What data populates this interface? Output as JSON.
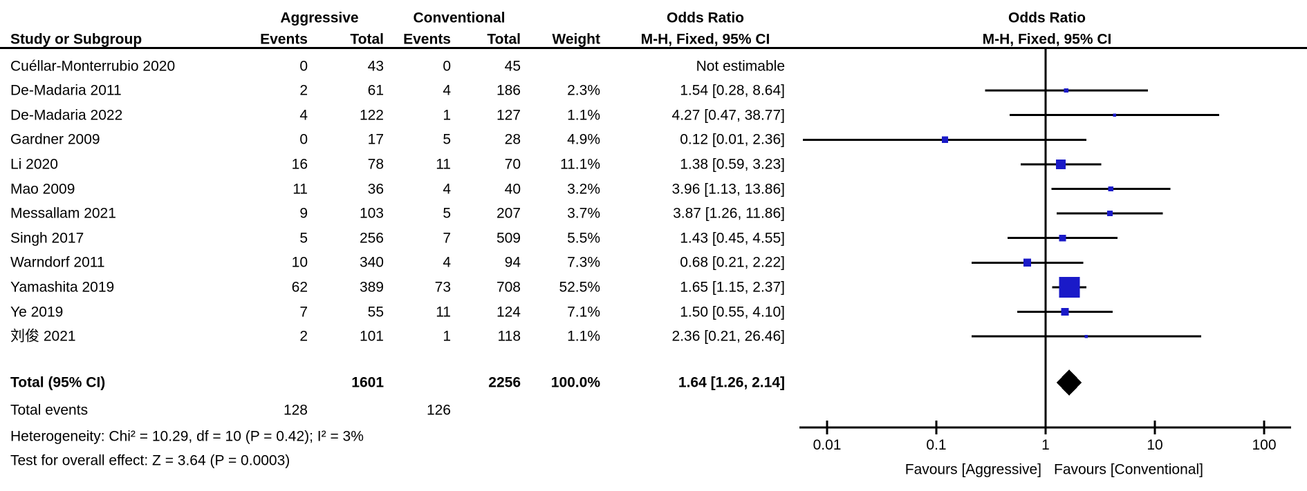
{
  "headers": {
    "study": "Study or Subgroup",
    "group_aggressive": "Aggressive",
    "group_conventional": "Conventional",
    "events": "Events",
    "total": "Total",
    "weight": "Weight",
    "or_text_line1": "Odds Ratio",
    "or_text_line2": "M-H, Fixed, 95% CI",
    "or_plot_line1": "Odds Ratio",
    "or_plot_line2": "M-H, Fixed, 95% CI"
  },
  "chart_data": {
    "type": "forest",
    "x_scale": "log",
    "x_min": 0.01,
    "x_max": 100,
    "x_ticks": [
      0.01,
      0.1,
      1,
      10,
      100
    ],
    "favours_left": "Favours [Aggressive]",
    "favours_right": "Favours [Conventional]",
    "marker_color": "#1a1ac8",
    "diamond_color": "#000000",
    "studies": [
      {
        "name": "Cuéllar-Monterrubio 2020",
        "events_aggressive": 0,
        "total_aggressive": 43,
        "events_conventional": 0,
        "total_conventional": 45,
        "weight_text": "",
        "weight_value": null,
        "or_ci_text": "Not estimable",
        "or": null,
        "ci_low": null,
        "ci_high": null
      },
      {
        "name": "De-Madaria 2011",
        "events_aggressive": 2,
        "total_aggressive": 61,
        "events_conventional": 4,
        "total_conventional": 186,
        "weight_text": "2.3%",
        "weight_value": 2.3,
        "or_ci_text": "1.54 [0.28, 8.64]",
        "or": 1.54,
        "ci_low": 0.28,
        "ci_high": 8.64
      },
      {
        "name": "De-Madaria 2022",
        "events_aggressive": 4,
        "total_aggressive": 122,
        "events_conventional": 1,
        "total_conventional": 127,
        "weight_text": "1.1%",
        "weight_value": 1.1,
        "or_ci_text": "4.27 [0.47, 38.77]",
        "or": 4.27,
        "ci_low": 0.47,
        "ci_high": 38.77
      },
      {
        "name": "Gardner 2009",
        "events_aggressive": 0,
        "total_aggressive": 17,
        "events_conventional": 5,
        "total_conventional": 28,
        "weight_text": "4.9%",
        "weight_value": 4.9,
        "or_ci_text": "0.12 [0.01, 2.36]",
        "or": 0.12,
        "ci_low": 0.01,
        "ci_high": 2.36,
        "plot_low": 0.006
      },
      {
        "name": "Li 2020",
        "events_aggressive": 16,
        "total_aggressive": 78,
        "events_conventional": 11,
        "total_conventional": 70,
        "weight_text": "11.1%",
        "weight_value": 11.1,
        "or_ci_text": "1.38 [0.59, 3.23]",
        "or": 1.38,
        "ci_low": 0.59,
        "ci_high": 3.23
      },
      {
        "name": "Mao 2009",
        "events_aggressive": 11,
        "total_aggressive": 36,
        "events_conventional": 4,
        "total_conventional": 40,
        "weight_text": "3.2%",
        "weight_value": 3.2,
        "or_ci_text": "3.96 [1.13, 13.86]",
        "or": 3.96,
        "ci_low": 1.13,
        "ci_high": 13.86
      },
      {
        "name": "Messallam 2021",
        "events_aggressive": 9,
        "total_aggressive": 103,
        "events_conventional": 5,
        "total_conventional": 207,
        "weight_text": "3.7%",
        "weight_value": 3.7,
        "or_ci_text": "3.87 [1.26, 11.86]",
        "or": 3.87,
        "ci_low": 1.26,
        "ci_high": 11.86
      },
      {
        "name": "Singh 2017",
        "events_aggressive": 5,
        "total_aggressive": 256,
        "events_conventional": 7,
        "total_conventional": 509,
        "weight_text": "5.5%",
        "weight_value": 5.5,
        "or_ci_text": "1.43 [0.45, 4.55]",
        "or": 1.43,
        "ci_low": 0.45,
        "ci_high": 4.55
      },
      {
        "name": "Warndorf 2011",
        "events_aggressive": 10,
        "total_aggressive": 340,
        "events_conventional": 4,
        "total_conventional": 94,
        "weight_text": "7.3%",
        "weight_value": 7.3,
        "or_ci_text": "0.68 [0.21, 2.22]",
        "or": 0.68,
        "ci_low": 0.21,
        "ci_high": 2.22
      },
      {
        "name": "Yamashita 2019",
        "events_aggressive": 62,
        "total_aggressive": 389,
        "events_conventional": 73,
        "total_conventional": 708,
        "weight_text": "52.5%",
        "weight_value": 52.5,
        "or_ci_text": "1.65 [1.15, 2.37]",
        "or": 1.65,
        "ci_low": 1.15,
        "ci_high": 2.37
      },
      {
        "name": "Ye 2019",
        "events_aggressive": 7,
        "total_aggressive": 55,
        "events_conventional": 11,
        "total_conventional": 124,
        "weight_text": "7.1%",
        "weight_value": 7.1,
        "or_ci_text": "1.50 [0.55, 4.10]",
        "or": 1.5,
        "ci_low": 0.55,
        "ci_high": 4.1
      },
      {
        "name": "刘俊 2021",
        "events_aggressive": 2,
        "total_aggressive": 101,
        "events_conventional": 1,
        "total_conventional": 118,
        "weight_text": "1.1%",
        "weight_value": 1.1,
        "or_ci_text": "2.36 [0.21, 26.46]",
        "or": 2.36,
        "ci_low": 0.21,
        "ci_high": 26.46
      }
    ],
    "total": {
      "label": "Total (95% CI)",
      "total_aggressive": "1601",
      "total_conventional": "2256",
      "weight_text": "100.0%",
      "or_ci_text": "1.64 [1.26, 2.14]",
      "or": 1.64,
      "ci_low": 1.26,
      "ci_high": 2.14
    },
    "total_events": {
      "label": "Total events",
      "aggressive": "128",
      "conventional": "126"
    },
    "heterogeneity": "Heterogeneity: Chi² = 10.29, df = 10 (P = 0.42); I² = 3%",
    "overall_effect": "Test for overall effect: Z = 3.64 (P = 0.0003)"
  }
}
